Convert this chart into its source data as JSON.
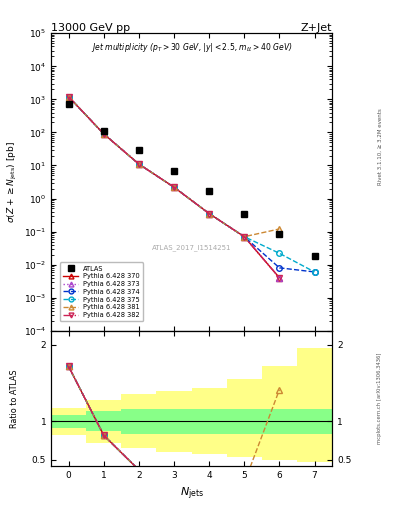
{
  "title_top": "13000 GeV pp",
  "title_right": "Z+Jet",
  "right_label_main": "Rivet 3.1.10, ≥ 3.2M events",
  "right_label_bottom": "mcplots.cern.ch [arXiv:1306.3436]",
  "watermark": "ATLAS_2017_I1514251",
  "atlas_x": [
    0,
    1,
    2,
    3,
    4,
    5,
    6,
    7
  ],
  "atlas_y": [
    700,
    110,
    30,
    7.0,
    1.7,
    0.35,
    0.085,
    0.018
  ],
  "njets_x": [
    0,
    1,
    2,
    3,
    4,
    5,
    6,
    7
  ],
  "py370_y": [
    1200,
    90,
    11,
    2.2,
    0.35,
    0.07,
    0.004,
    null
  ],
  "py373_y": [
    1200,
    90,
    11,
    2.2,
    0.35,
    0.07,
    0.004,
    null
  ],
  "py374_y": [
    1200,
    90,
    11,
    2.2,
    0.35,
    0.07,
    0.008,
    0.006
  ],
  "py375_y": [
    1200,
    90,
    11,
    2.2,
    0.35,
    0.07,
    0.022,
    0.006
  ],
  "py381_y": [
    1200,
    90,
    11,
    2.2,
    0.35,
    0.07,
    0.12,
    null
  ],
  "py382_y": [
    1200,
    90,
    11,
    2.2,
    0.35,
    0.07,
    0.004,
    null
  ],
  "series": [
    {
      "label": "Pythia 6.428 370",
      "color": "#cc0000",
      "linestyle": "-",
      "marker": "^"
    },
    {
      "label": "Pythia 6.428 373",
      "color": "#aa44cc",
      "linestyle": ":",
      "marker": "^"
    },
    {
      "label": "Pythia 6.428 374",
      "color": "#0033cc",
      "linestyle": "--",
      "marker": "o"
    },
    {
      "label": "Pythia 6.428 375",
      "color": "#00aacc",
      "linestyle": "--",
      "marker": "o"
    },
    {
      "label": "Pythia 6.428 381",
      "color": "#cc8833",
      "linestyle": "--",
      "marker": "^"
    },
    {
      "label": "Pythia 6.428 382",
      "color": "#cc2255",
      "linestyle": "-.",
      "marker": "v"
    }
  ],
  "green_band_edges": [
    -0.5,
    0.5,
    1.5,
    2.5,
    3.5,
    4.5,
    5.5,
    6.5,
    7.5
  ],
  "green_band_lo": [
    0.92,
    0.87,
    0.84,
    0.84,
    0.84,
    0.84,
    0.84,
    0.84
  ],
  "green_band_hi": [
    1.08,
    1.13,
    1.16,
    1.16,
    1.16,
    1.16,
    1.16,
    1.16
  ],
  "yellow_band_lo": [
    0.82,
    0.72,
    0.65,
    0.6,
    0.57,
    0.53,
    0.5,
    0.47
  ],
  "yellow_band_hi": [
    1.18,
    1.28,
    1.35,
    1.4,
    1.43,
    1.55,
    1.72,
    1.95
  ],
  "ratio_ylim": [
    0.42,
    2.18
  ],
  "main_ylim_log": [
    0.0001,
    100000.0
  ],
  "main_xlim": [
    -0.5,
    7.5
  ],
  "ratio_yticks": [
    0.5,
    1.0,
    2.0
  ],
  "ratio_yticklabels": [
    "0.5",
    "1",
    "2"
  ]
}
